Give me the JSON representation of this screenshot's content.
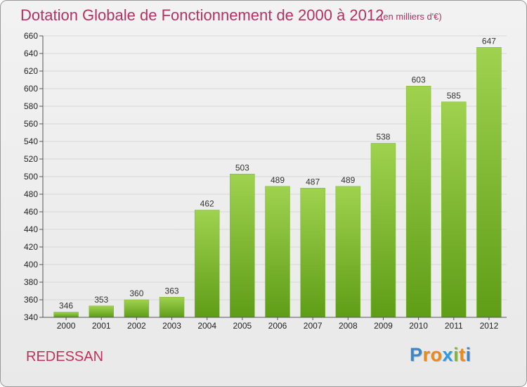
{
  "header": {
    "title": "Dotation Globale de Fonctionnement de 2000 à 2012",
    "unit": "(en milliers d'€)"
  },
  "footer": {
    "commune": "REDESSAN",
    "brand_letters": [
      "P",
      "r",
      "o",
      "x",
      "i",
      "t",
      "i"
    ],
    "brand_colors": [
      "#3a86c8",
      "#e98b1c",
      "#e98b1c",
      "#2e9be0",
      "#7fb832",
      "#e98b1c",
      "#3a86c8"
    ]
  },
  "chart_data": {
    "type": "bar",
    "title": "Dotation Globale de Fonctionnement de 2000 à 2012",
    "subtitle": "(en milliers d'€)",
    "xlabel": "",
    "ylabel": "",
    "categories": [
      "2000",
      "2001",
      "2002",
      "2003",
      "2004",
      "2005",
      "2006",
      "2007",
      "2008",
      "2009",
      "2010",
      "2011",
      "2012"
    ],
    "values": [
      346,
      353,
      360,
      363,
      462,
      503,
      489,
      487,
      489,
      538,
      603,
      585,
      647
    ],
    "ylim": [
      340,
      660
    ],
    "yticks": [
      340,
      360,
      380,
      400,
      420,
      440,
      460,
      480,
      500,
      520,
      540,
      560,
      580,
      600,
      620,
      640,
      660
    ],
    "grid": true,
    "colors": {
      "bar_top": "#9fd24f",
      "bar_bottom": "#5f9d17",
      "grid": "#d7d7d7",
      "axis": "#555555",
      "title": "#b33261"
    }
  }
}
